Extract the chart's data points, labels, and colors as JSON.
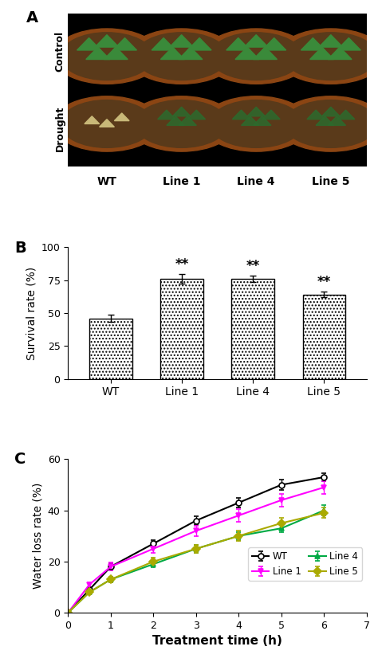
{
  "panel_A_labels_bottom": [
    "WT",
    "Line 1",
    "Line 4",
    "Line 5"
  ],
  "panel_A_label": "A",
  "panel_A_cols": [
    0.13,
    0.38,
    0.63,
    0.88
  ],
  "panel_A_rows": [
    0.72,
    0.28
  ],
  "panel_B_label": "B",
  "panel_B_categories": [
    "WT",
    "Line 1",
    "Line 4",
    "Line 5"
  ],
  "panel_B_values": [
    46,
    76,
    76,
    64
  ],
  "panel_B_errors": [
    2.5,
    3.5,
    2.5,
    2.0
  ],
  "panel_B_ylabel": "Survival rate (%)",
  "panel_B_ylim": [
    0,
    100
  ],
  "panel_B_yticks": [
    0,
    25,
    50,
    75,
    100
  ],
  "panel_B_significance": [
    "",
    "**",
    "**",
    "**"
  ],
  "panel_B_bar_color": "white",
  "panel_B_bar_hatch": "....",
  "panel_B_bar_edgecolor": "black",
  "panel_C_label": "C",
  "panel_C_xlabel": "Treatment time (h)",
  "panel_C_ylabel": "Water loss rate (%)",
  "panel_C_ylim": [
    0,
    60
  ],
  "panel_C_yticks": [
    0,
    20,
    40,
    60
  ],
  "panel_C_xlim": [
    0,
    7
  ],
  "panel_C_xticks": [
    0,
    1,
    2,
    3,
    4,
    5,
    6,
    7
  ],
  "panel_C_x": [
    0,
    0.5,
    1,
    2,
    3,
    4,
    5,
    6
  ],
  "panel_C_WT_y": [
    0,
    9,
    18,
    27,
    36,
    43,
    50,
    53
  ],
  "panel_C_WT_err": [
    0,
    0.8,
    1.2,
    1.5,
    1.8,
    2.0,
    2.0,
    1.5
  ],
  "panel_C_Line1_y": [
    0,
    11,
    18,
    25,
    32,
    38,
    44,
    49
  ],
  "panel_C_Line1_err": [
    0,
    1.0,
    1.5,
    1.5,
    2.0,
    2.5,
    2.5,
    2.5
  ],
  "panel_C_Line4_y": [
    0,
    8,
    13,
    19,
    25,
    30,
    33,
    40
  ],
  "panel_C_Line4_err": [
    0,
    0.8,
    1.0,
    1.2,
    1.5,
    1.5,
    1.5,
    2.0
  ],
  "panel_C_Line5_y": [
    0,
    8,
    13,
    20,
    25,
    30,
    35,
    39
  ],
  "panel_C_Line5_err": [
    0,
    0.8,
    1.0,
    1.5,
    1.5,
    2.0,
    2.0,
    2.0
  ],
  "panel_C_WT_color": "black",
  "panel_C_Line1_color": "#FF00FF",
  "panel_C_Line4_color": "#00AA44",
  "panel_C_Line5_color": "#AAAA00",
  "panel_C_WT_marker": "o",
  "panel_C_Line1_marker": "v",
  "panel_C_Line4_marker": "^",
  "panel_C_Line5_marker": "D"
}
